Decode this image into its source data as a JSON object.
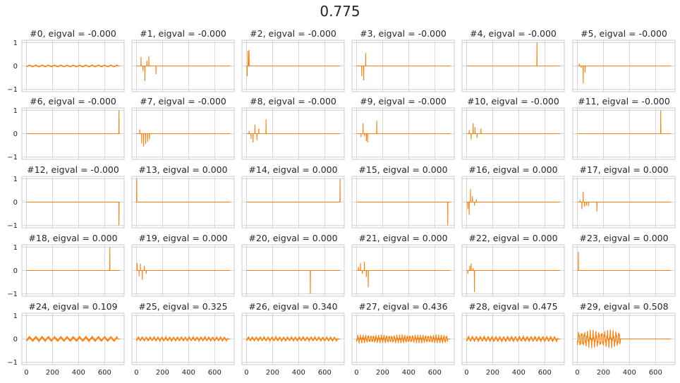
{
  "suptitle": "0.775",
  "colors": {
    "line": "#ff7f0e",
    "grid": "#cccccc",
    "frame": "#cccccc"
  },
  "chart_data": {
    "type": "line",
    "layout": "5x6 small multiples, shared x and y axes",
    "xlim": [
      -35,
      750
    ],
    "ylim": [
      -1.1,
      1.1
    ],
    "x_ticks": [
      0,
      200,
      400,
      600
    ],
    "y_ticks": [
      -1,
      0,
      1
    ],
    "grid": true,
    "n_points": 720,
    "panels": [
      {
        "title": "#0, eigval = -0.000",
        "pattern": "ripple",
        "amp": 0.04,
        "period": 48,
        "from": 0,
        "to": 700
      },
      {
        "title": "#1, eigval = -0.000",
        "pattern": "spikes",
        "spikes": [
          [
            35,
            0.38
          ],
          [
            50,
            -0.22
          ],
          [
            65,
            -0.65
          ],
          [
            80,
            0.22
          ],
          [
            95,
            0.42
          ],
          [
            150,
            -0.35
          ]
        ]
      },
      {
        "title": "#2, eigval = -0.000",
        "pattern": "spikes",
        "spikes": [
          [
            5,
            -0.45
          ],
          [
            12,
            0.65
          ],
          [
            20,
            0.68
          ]
        ]
      },
      {
        "title": "#3, eigval = -0.000",
        "pattern": "spikes",
        "spikes": [
          [
            40,
            -0.45
          ],
          [
            55,
            -0.62
          ],
          [
            70,
            0.55
          ]
        ]
      },
      {
        "title": "#4, eigval = -0.000",
        "pattern": "spikes",
        "spikes": [
          [
            540,
            1.0
          ]
        ]
      },
      {
        "title": "#5, eigval = -0.000",
        "pattern": "spikes",
        "spikes": [
          [
            15,
            0.1
          ],
          [
            30,
            -0.08
          ],
          [
            45,
            -0.75
          ],
          [
            60,
            -0.28
          ]
        ]
      },
      {
        "title": "#6, eigval = -0.000",
        "pattern": "spikes",
        "spikes": [
          [
            710,
            1.0
          ]
        ]
      },
      {
        "title": "#7, eigval = -0.000",
        "pattern": "spikes",
        "spikes": [
          [
            25,
            0.18
          ],
          [
            40,
            -0.42
          ],
          [
            55,
            -0.55
          ],
          [
            70,
            -0.45
          ],
          [
            85,
            -0.35
          ],
          [
            100,
            -0.25
          ]
        ]
      },
      {
        "title": "#8, eigval = -0.000",
        "pattern": "spikes",
        "spikes": [
          [
            20,
            0.12
          ],
          [
            35,
            -0.22
          ],
          [
            50,
            -0.38
          ],
          [
            65,
            0.38
          ],
          [
            80,
            -0.28
          ],
          [
            95,
            0.22
          ],
          [
            150,
            0.62
          ]
        ]
      },
      {
        "title": "#9, eigval = -0.000",
        "pattern": "spikes",
        "spikes": [
          [
            35,
            -0.15
          ],
          [
            50,
            0.45
          ],
          [
            60,
            -0.1
          ],
          [
            75,
            -0.32
          ],
          [
            85,
            -0.38
          ],
          [
            155,
            0.55
          ]
        ]
      },
      {
        "title": "#10, eigval = -0.000",
        "pattern": "spikes",
        "spikes": [
          [
            20,
            0.15
          ],
          [
            35,
            -0.25
          ],
          [
            50,
            0.45
          ],
          [
            65,
            0.28
          ],
          [
            80,
            -0.18
          ],
          [
            110,
            0.22
          ]
        ]
      },
      {
        "title": "#11, eigval = -0.000",
        "pattern": "spikes",
        "spikes": [
          [
            640,
            1.0
          ]
        ]
      },
      {
        "title": "#12, eigval = -0.000",
        "pattern": "spikes",
        "spikes": [
          [
            710,
            -1.0
          ]
        ]
      },
      {
        "title": "#13, eigval = 0.000",
        "pattern": "spikes",
        "spikes": [
          [
            2,
            1.0
          ]
        ]
      },
      {
        "title": "#14, eigval = 0.000",
        "pattern": "spikes",
        "spikes": [
          [
            718,
            1.0
          ]
        ]
      },
      {
        "title": "#15, eigval = 0.000",
        "pattern": "spikes",
        "spikes": [
          [
            700,
            -1.0
          ]
        ]
      },
      {
        "title": "#16, eigval = 0.000",
        "pattern": "spikes",
        "spikes": [
          [
            10,
            -0.3
          ],
          [
            20,
            -0.55
          ],
          [
            30,
            0.55
          ],
          [
            45,
            0.25
          ],
          [
            60,
            -0.15
          ],
          [
            75,
            0.12
          ]
        ]
      },
      {
        "title": "#17, eigval = 0.000",
        "pattern": "spikes",
        "spikes": [
          [
            20,
            0.1
          ],
          [
            35,
            -0.3
          ],
          [
            45,
            0.45
          ],
          [
            55,
            -0.2
          ],
          [
            70,
            -0.15
          ],
          [
            85,
            -0.18
          ],
          [
            150,
            -0.4
          ]
        ]
      },
      {
        "title": "#18, eigval = 0.000",
        "pattern": "spikes",
        "spikes": [
          [
            640,
            1.0
          ]
        ]
      },
      {
        "title": "#19, eigval = 0.000",
        "pattern": "spikes",
        "spikes": [
          [
            5,
            0.32
          ],
          [
            20,
            -0.25
          ],
          [
            30,
            0.3
          ],
          [
            45,
            -0.4
          ],
          [
            60,
            0.2
          ],
          [
            75,
            -0.15
          ]
        ]
      },
      {
        "title": "#20, eigval = 0.000",
        "pattern": "spikes",
        "spikes": [
          [
            490,
            -1.0
          ]
        ]
      },
      {
        "title": "#21, eigval = 0.000",
        "pattern": "spikes",
        "spikes": [
          [
            15,
            0.15
          ],
          [
            30,
            0.32
          ],
          [
            45,
            -0.15
          ],
          [
            60,
            0.38
          ],
          [
            75,
            -0.28
          ],
          [
            90,
            -0.72
          ]
        ]
      },
      {
        "title": "#22, eigval = 0.000",
        "pattern": "spikes",
        "spikes": [
          [
            10,
            -0.15
          ],
          [
            25,
            0.2
          ],
          [
            35,
            0.3
          ],
          [
            50,
            0.1
          ],
          [
            60,
            -0.92
          ]
        ]
      },
      {
        "title": "#23, eigval = 0.000",
        "pattern": "spikes",
        "spikes": [
          [
            8,
            0.8
          ]
        ]
      },
      {
        "title": "#24, eigval = 0.109",
        "pattern": "ripple",
        "amp": 0.1,
        "period": 48,
        "from": 0,
        "to": 700
      },
      {
        "title": "#25, eigval = 0.325",
        "pattern": "ripple",
        "amp": 0.09,
        "period": 30,
        "from": 0,
        "to": 700
      },
      {
        "title": "#26, eigval = 0.340",
        "pattern": "ripple",
        "amp": 0.09,
        "period": 30,
        "from": 0,
        "to": 700
      },
      {
        "title": "#27, eigval = 0.436",
        "pattern": "ripple",
        "amp": 0.16,
        "period": 20,
        "from": 0,
        "to": 700
      },
      {
        "title": "#28, eigval = 0.475",
        "pattern": "ripple",
        "amp": 0.11,
        "period": 30,
        "from": 0,
        "to": 700
      },
      {
        "title": "#29, eigval = 0.508",
        "pattern": "ripple",
        "amp": 0.35,
        "period": 22,
        "from": 0,
        "to": 330
      }
    ]
  }
}
